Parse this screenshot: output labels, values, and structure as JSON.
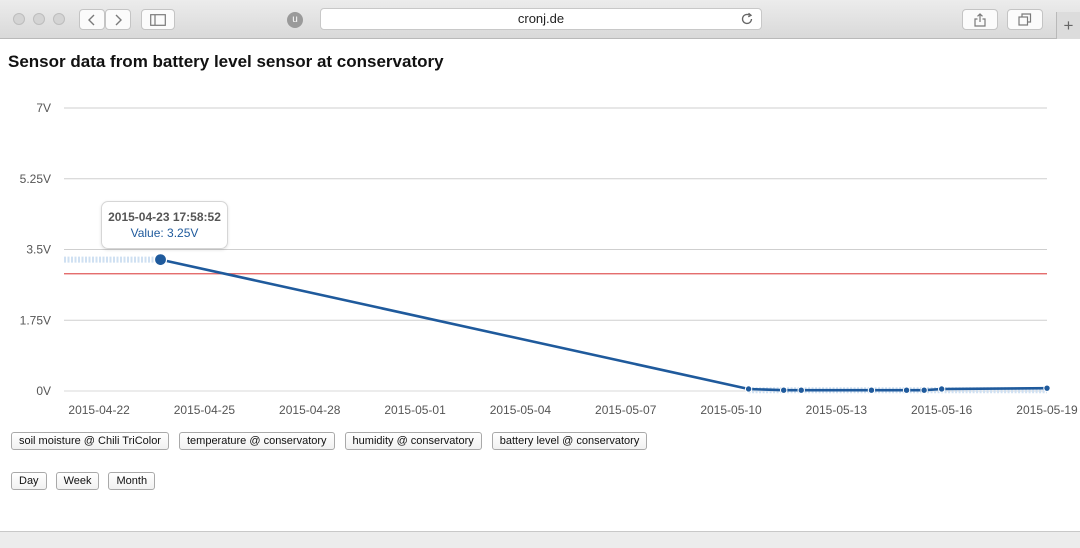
{
  "browser": {
    "url": "cronj.de",
    "extension_label": "u",
    "new_tab_label": "+"
  },
  "page": {
    "title": "Sensor data from battery level sensor at conservatory"
  },
  "tooltip": {
    "date": "2015-04-23 17:58:52",
    "value": "Value: 3.25V"
  },
  "chart_data": {
    "type": "line",
    "title": "",
    "xlabel": "",
    "ylabel": "",
    "y_unit": "V",
    "ylim": [
      0,
      7
    ],
    "yticks": [
      "0V",
      "1.75V",
      "3.5V",
      "5.25V",
      "7V"
    ],
    "ytick_values": [
      0,
      1.75,
      3.5,
      5.25,
      7
    ],
    "xlim": [
      "2015-04-21",
      "2015-05-19"
    ],
    "xticks": [
      "2015-04-22",
      "2015-04-25",
      "2015-04-28",
      "2015-05-01",
      "2015-05-04",
      "2015-05-07",
      "2015-05-10",
      "2015-05-13",
      "2015-05-16",
      "2015-05-19"
    ],
    "threshold": 2.9,
    "threshold_color": "#e05a5a",
    "series_color": "#1f5a9c",
    "grid": true,
    "series": [
      {
        "values": [
          {
            "x": "2015-04-21",
            "y": 3.25
          },
          {
            "x": "2015-04-22",
            "y": 3.25
          },
          {
            "x": "2015-04-23",
            "y": 3.25
          },
          {
            "x": "2015-04-23 17:58:52",
            "y": 3.25
          },
          {
            "x": "2015-05-10 12:00",
            "y": 0.05
          },
          {
            "x": "2015-05-11 12:00",
            "y": 0.02
          },
          {
            "x": "2015-05-12",
            "y": 0.02
          },
          {
            "x": "2015-05-14",
            "y": 0.02
          },
          {
            "x": "2015-05-15",
            "y": 0.02
          },
          {
            "x": "2015-05-15 12:00",
            "y": 0.02
          },
          {
            "x": "2015-05-16",
            "y": 0.05
          },
          {
            "x": "2015-05-19",
            "y": 0.07
          }
        ]
      }
    ],
    "highlight": {
      "x": "2015-04-23 17:58:52",
      "y": 3.25
    }
  },
  "sensor_buttons": [
    "soil moisture @ Chili TriColor",
    "temperature @ conservatory",
    "humidity @ conservatory",
    "battery level @ conservatory"
  ],
  "range_buttons": [
    "Day",
    "Week",
    "Month"
  ]
}
